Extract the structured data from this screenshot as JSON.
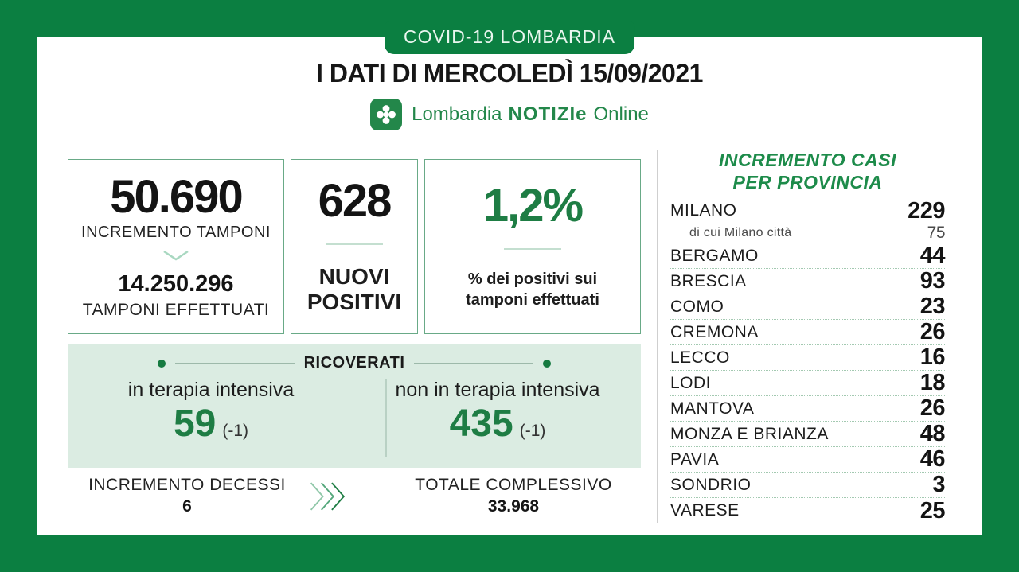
{
  "banner": {
    "label": "COVID-19 LOMBARDIA"
  },
  "header": {
    "title": "I DATI DI MERCOLEDÌ 15/09/2021"
  },
  "logo": {
    "region": "Lombardia",
    "brand": "NOTIZIe",
    "suffix": "Online"
  },
  "colors": {
    "frame_green": "#0b7f41",
    "logo_green": "#23874a",
    "value_green": "#1e7d44",
    "panel_title_green": "#1d8b4a",
    "mint_background": "#dbece2"
  },
  "stats": {
    "tamponi": {
      "increment": "50.690",
      "increment_label": "INCREMENTO TAMPONI",
      "total": "14.250.296",
      "total_label": "TAMPONI EFFETTUATI"
    },
    "nuovi_positivi": {
      "value": "628",
      "label": "NUOVI POSITIVI"
    },
    "positivity": {
      "value": "1,2%",
      "label": "% dei positivi sui tamponi effettuati"
    }
  },
  "ricoverati": {
    "title": "RICOVERATI",
    "intensive": {
      "label": "in terapia intensiva",
      "value": "59",
      "delta": "(-1)"
    },
    "non_intensive": {
      "label": "non in terapia intensiva",
      "value": "435",
      "delta": "(-1)"
    }
  },
  "decessi": {
    "label": "INCREMENTO DECESSI",
    "value": "6"
  },
  "totale": {
    "label": "TOTALE COMPLESSIVO",
    "value": "33.968"
  },
  "provinces": {
    "title_line1": "INCREMENTO CASI",
    "title_line2": "PER PROVINCIA",
    "rows": [
      {
        "name": "MILANO",
        "value": "229",
        "sub": false
      },
      {
        "name": "di cui Milano città",
        "value": "75",
        "sub": true
      },
      {
        "name": "BERGAMO",
        "value": "44",
        "sub": false
      },
      {
        "name": "BRESCIA",
        "value": "93",
        "sub": false
      },
      {
        "name": "COMO",
        "value": "23",
        "sub": false
      },
      {
        "name": "CREMONA",
        "value": "26",
        "sub": false
      },
      {
        "name": "LECCO",
        "value": "16",
        "sub": false
      },
      {
        "name": "LODI",
        "value": "18",
        "sub": false
      },
      {
        "name": "MANTOVA",
        "value": "26",
        "sub": false
      },
      {
        "name": "MONZA E BRIANZA",
        "value": "48",
        "sub": false
      },
      {
        "name": "PAVIA",
        "value": "46",
        "sub": false
      },
      {
        "name": "SONDRIO",
        "value": "3",
        "sub": false
      },
      {
        "name": "VARESE",
        "value": "25",
        "sub": false
      }
    ]
  },
  "chart_data": {
    "type": "table",
    "title": "INCREMENTO CASI PER PROVINCIA",
    "categories": [
      "MILANO",
      "di cui Milano città",
      "BERGAMO",
      "BRESCIA",
      "COMO",
      "CREMONA",
      "LECCO",
      "LODI",
      "MANTOVA",
      "MONZA E BRIANZA",
      "PAVIA",
      "SONDRIO",
      "VARESE"
    ],
    "values": [
      229,
      75,
      44,
      93,
      23,
      26,
      16,
      18,
      26,
      48,
      46,
      3,
      25
    ],
    "summary": {
      "incremento_tamponi": 50690,
      "tamponi_effettuati": 14250296,
      "nuovi_positivi": 628,
      "percent_positivi": "1,2%",
      "terapia_intensiva": 59,
      "terapia_intensiva_delta": -1,
      "non_terapia_intensiva": 435,
      "non_terapia_intensiva_delta": -1,
      "incremento_decessi": 6,
      "totale_decessi": 33968
    }
  }
}
